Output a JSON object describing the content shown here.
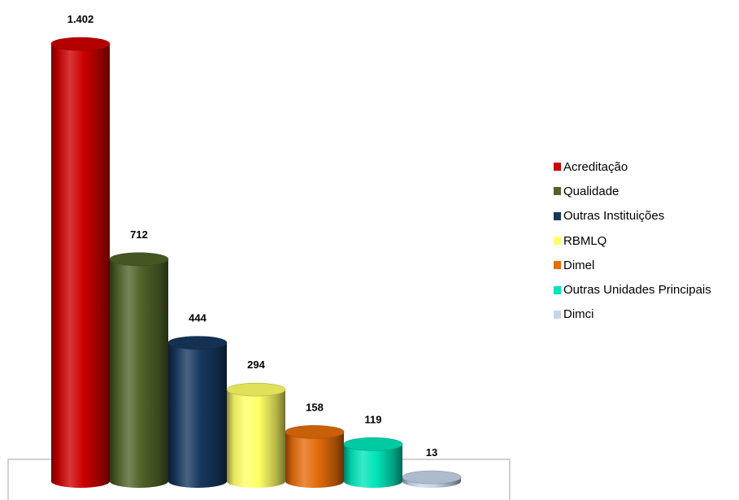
{
  "chart_data": {
    "type": "bar",
    "title": "",
    "xlabel": "",
    "ylabel": "",
    "categories": [
      "Acreditação",
      "Qualidade",
      "Outras Instituições",
      "RBMLQ",
      "Dimel",
      "Outras Unidades Principais",
      "Dimci"
    ],
    "values": [
      1402,
      712,
      444,
      294,
      158,
      119,
      13
    ],
    "value_labels": [
      "1.402",
      "712",
      "444",
      "294",
      "158",
      "119",
      "13"
    ],
    "colors": [
      "#cc0000",
      "#4f6228",
      "#17375e",
      "#ffff66",
      "#e46c0a",
      "#00e5b8",
      "#c5d5ea"
    ],
    "bar_shape": "cylinder",
    "legend_position": "right",
    "ylim": [
      0,
      1402
    ],
    "grid": false
  }
}
